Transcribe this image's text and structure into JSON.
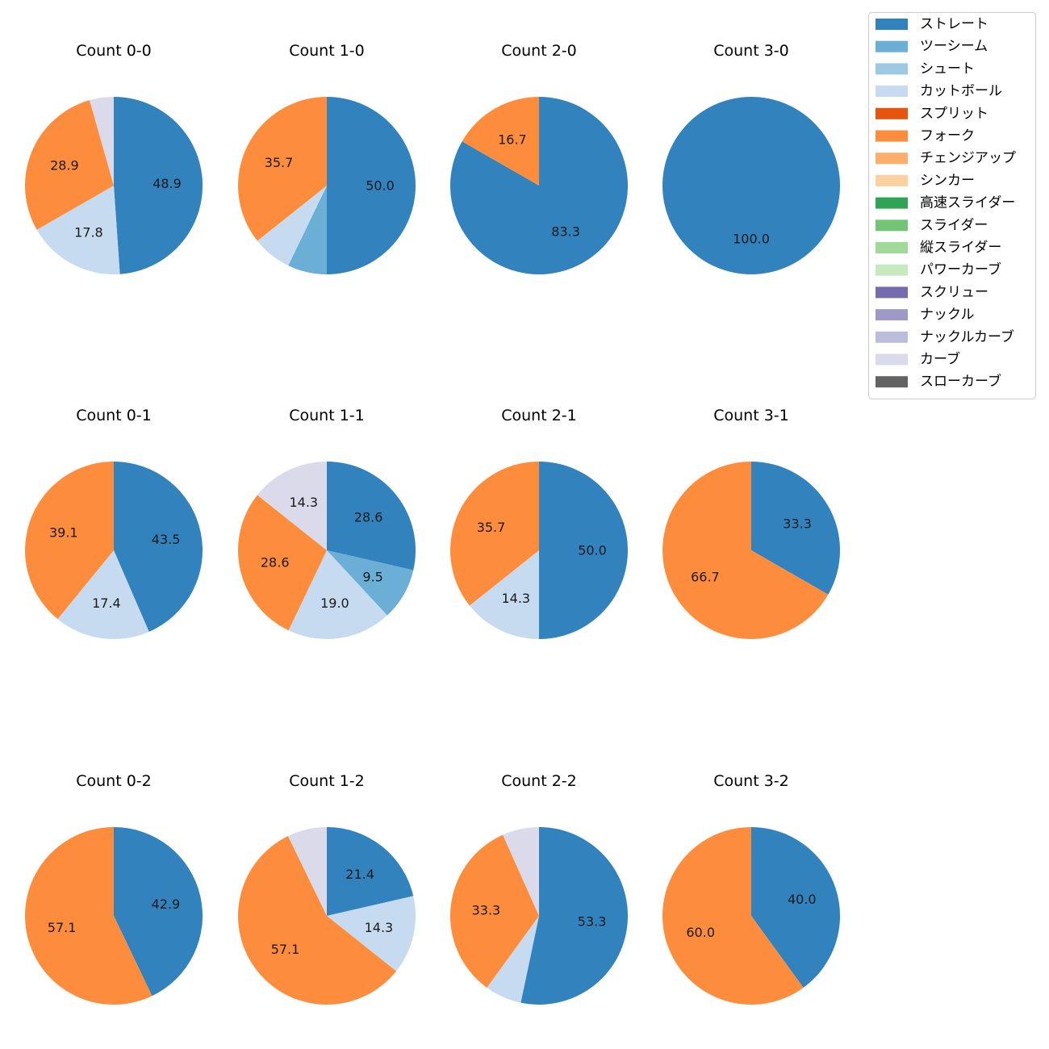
{
  "chart_data": {
    "type": "pie",
    "legend": {
      "placement": "top-right",
      "entries": [
        {
          "name": "ストレート",
          "color": "#3182bd"
        },
        {
          "name": "ツーシーム",
          "color": "#6baed6"
        },
        {
          "name": "シュート",
          "color": "#9ecae1"
        },
        {
          "name": "カットボール",
          "color": "#c6dbef"
        },
        {
          "name": "スプリット",
          "color": "#e6550d"
        },
        {
          "name": "フォーク",
          "color": "#fd8d3c"
        },
        {
          "name": "チェンジアップ",
          "color": "#fdae6b"
        },
        {
          "name": "シンカー",
          "color": "#fdd0a2"
        },
        {
          "name": "高速スライダー",
          "color": "#31a354"
        },
        {
          "name": "スライダー",
          "color": "#74c476"
        },
        {
          "name": "縦スライダー",
          "color": "#a1d99b"
        },
        {
          "name": "パワーカーブ",
          "color": "#c7e9c0"
        },
        {
          "name": "スクリュー",
          "color": "#756bb1"
        },
        {
          "name": "ナックル",
          "color": "#9e9ac8"
        },
        {
          "name": "ナックルカーブ",
          "color": "#bcbddc"
        },
        {
          "name": "カーブ",
          "color": "#dadaeb"
        },
        {
          "name": "スローカーブ",
          "color": "#636363"
        }
      ]
    },
    "charts": [
      {
        "title": "Count 0-0",
        "slices": [
          {
            "pitch": "ストレート",
            "value": 48.9,
            "label": "48.9"
          },
          {
            "pitch": "カットボール",
            "value": 17.8,
            "label": "17.8"
          },
          {
            "pitch": "フォーク",
            "value": 28.9,
            "label": "28.9"
          },
          {
            "pitch": "カーブ",
            "value": 4.4,
            "label": ""
          }
        ]
      },
      {
        "title": "Count 1-0",
        "slices": [
          {
            "pitch": "ストレート",
            "value": 50.0,
            "label": "50.0"
          },
          {
            "pitch": "ツーシーム",
            "value": 7.15,
            "label": ""
          },
          {
            "pitch": "カットボール",
            "value": 7.15,
            "label": ""
          },
          {
            "pitch": "フォーク",
            "value": 35.7,
            "label": "35.7"
          }
        ]
      },
      {
        "title": "Count 2-0",
        "slices": [
          {
            "pitch": "ストレート",
            "value": 83.3,
            "label": "83.3"
          },
          {
            "pitch": "フォーク",
            "value": 16.7,
            "label": "16.7"
          }
        ]
      },
      {
        "title": "Count 3-0",
        "slices": [
          {
            "pitch": "ストレート",
            "value": 100.0,
            "label": "100.0"
          }
        ]
      },
      {
        "title": "Count 0-1",
        "slices": [
          {
            "pitch": "ストレート",
            "value": 43.5,
            "label": "43.5"
          },
          {
            "pitch": "カットボール",
            "value": 17.4,
            "label": "17.4"
          },
          {
            "pitch": "フォーク",
            "value": 39.1,
            "label": "39.1"
          }
        ]
      },
      {
        "title": "Count 1-1",
        "slices": [
          {
            "pitch": "ストレート",
            "value": 28.6,
            "label": "28.6"
          },
          {
            "pitch": "ツーシーム",
            "value": 9.5,
            "label": "9.5"
          },
          {
            "pitch": "カットボール",
            "value": 19.0,
            "label": "19.0"
          },
          {
            "pitch": "フォーク",
            "value": 28.6,
            "label": "28.6"
          },
          {
            "pitch": "カーブ",
            "value": 14.3,
            "label": "14.3"
          }
        ]
      },
      {
        "title": "Count 2-1",
        "slices": [
          {
            "pitch": "ストレート",
            "value": 50.0,
            "label": "50.0"
          },
          {
            "pitch": "カットボール",
            "value": 14.3,
            "label": "14.3"
          },
          {
            "pitch": "フォーク",
            "value": 35.7,
            "label": "35.7"
          }
        ]
      },
      {
        "title": "Count 3-1",
        "slices": [
          {
            "pitch": "ストレート",
            "value": 33.3,
            "label": "33.3"
          },
          {
            "pitch": "フォーク",
            "value": 66.7,
            "label": "66.7"
          }
        ]
      },
      {
        "title": "Count 0-2",
        "slices": [
          {
            "pitch": "ストレート",
            "value": 42.9,
            "label": "42.9"
          },
          {
            "pitch": "フォーク",
            "value": 57.1,
            "label": "57.1"
          }
        ]
      },
      {
        "title": "Count 1-2",
        "slices": [
          {
            "pitch": "ストレート",
            "value": 21.4,
            "label": "21.4"
          },
          {
            "pitch": "カットボール",
            "value": 14.3,
            "label": "14.3"
          },
          {
            "pitch": "フォーク",
            "value": 57.1,
            "label": "57.1"
          },
          {
            "pitch": "カーブ",
            "value": 7.2,
            "label": ""
          }
        ]
      },
      {
        "title": "Count 2-2",
        "slices": [
          {
            "pitch": "ストレート",
            "value": 53.3,
            "label": "53.3"
          },
          {
            "pitch": "カットボール",
            "value": 6.7,
            "label": ""
          },
          {
            "pitch": "フォーク",
            "value": 33.3,
            "label": "33.3"
          },
          {
            "pitch": "カーブ",
            "value": 6.7,
            "label": ""
          }
        ]
      },
      {
        "title": "Count 3-2",
        "slices": [
          {
            "pitch": "ストレート",
            "value": 40.0,
            "label": "40.0"
          },
          {
            "pitch": "フォーク",
            "value": 60.0,
            "label": "60.0"
          }
        ]
      }
    ]
  }
}
